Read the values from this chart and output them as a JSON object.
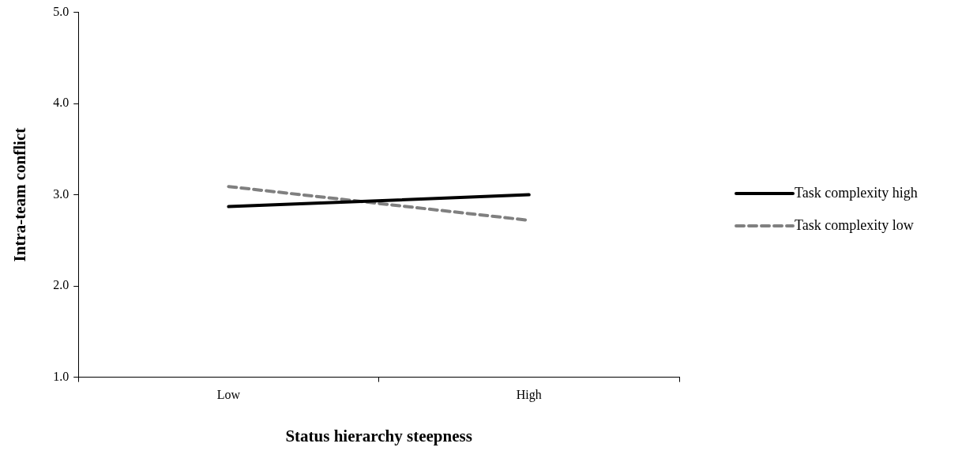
{
  "chart_data": {
    "type": "line",
    "xlabel": "Status hierarchy steepness",
    "ylabel": "Intra-team conflict",
    "categories": [
      "Low",
      "High"
    ],
    "series": [
      {
        "name": "Task complexity high",
        "color": "#000000",
        "values": [
          2.87,
          3.0
        ],
        "line_style": "solid"
      },
      {
        "name": "Task complexity low",
        "color": "#808080",
        "values": [
          3.09,
          2.72
        ],
        "line_style": "dashed"
      }
    ],
    "ylim": [
      1,
      5
    ],
    "yticks": [
      {
        "value": 1,
        "label": "1.0"
      },
      {
        "value": 2,
        "label": "2.0"
      },
      {
        "value": 3,
        "label": "3.0"
      },
      {
        "value": 4,
        "label": "4.0"
      },
      {
        "value": 5,
        "label": "5.0"
      }
    ],
    "grid": false,
    "legend": "right",
    "marker": "none"
  }
}
